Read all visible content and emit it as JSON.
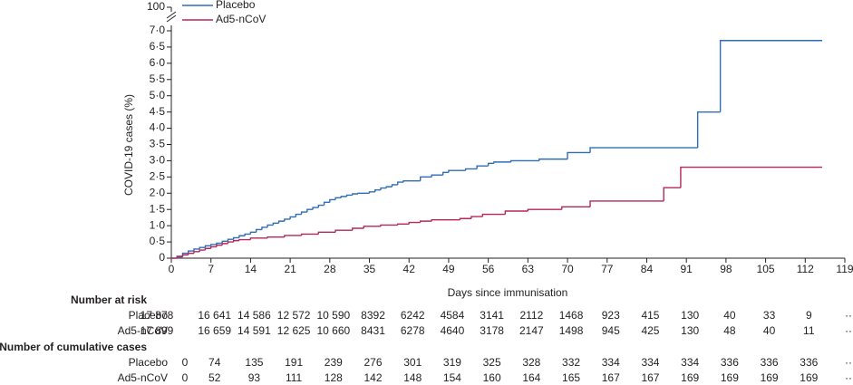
{
  "chart_data": {
    "type": "step",
    "x_label": "Days since immunisation",
    "y_label": "COVID-19 cases (%)",
    "xlim": [
      0,
      119
    ],
    "xticks": [
      0,
      7,
      14,
      21,
      28,
      35,
      42,
      49,
      56,
      63,
      70,
      77,
      84,
      91,
      98,
      105,
      112,
      119
    ],
    "ylim": [
      0,
      7
    ],
    "yticks": [
      0,
      {
        "value": 0.5,
        "label": "0·5"
      },
      {
        "value": 1,
        "label": "1·0"
      },
      {
        "value": 1.5,
        "label": "1·5"
      },
      {
        "value": 2,
        "label": "2·0"
      },
      {
        "value": 2.5,
        "label": "2·5"
      },
      {
        "value": 3,
        "label": "3·0"
      },
      {
        "value": 3.5,
        "label": "3·5"
      },
      {
        "value": 4,
        "label": "4·0"
      },
      {
        "value": 4.5,
        "label": "4·5"
      },
      {
        "value": 5,
        "label": "5·0"
      },
      {
        "value": 5.5,
        "label": "5·5"
      },
      {
        "value": 6,
        "label": "6·0"
      },
      {
        "value": 6.5,
        "label": "6·5"
      },
      {
        "value": 7,
        "label": "7·0"
      }
    ],
    "y_break_tick": 100,
    "series": [
      {
        "name": "Placebo",
        "color": "#2f6db5",
        "x": [
          0,
          1,
          2,
          3,
          4,
          5,
          6,
          7,
          8,
          9,
          10,
          11,
          12,
          13,
          14,
          15,
          16,
          17,
          18,
          19,
          20,
          21,
          22,
          23,
          24,
          25,
          26,
          27,
          28,
          29,
          30,
          31,
          32,
          33,
          35,
          36,
          37,
          38,
          39,
          40,
          41,
          44,
          46,
          48,
          49,
          52,
          54,
          56,
          57,
          60,
          65,
          70,
          74,
          93,
          97,
          115
        ],
        "values": [
          0,
          0.06,
          0.15,
          0.22,
          0.28,
          0.33,
          0.38,
          0.42,
          0.46,
          0.52,
          0.58,
          0.63,
          0.69,
          0.74,
          0.8,
          0.88,
          0.95,
          1.02,
          1.08,
          1.14,
          1.2,
          1.27,
          1.35,
          1.42,
          1.5,
          1.56,
          1.63,
          1.72,
          1.8,
          1.86,
          1.9,
          1.94,
          1.98,
          2.0,
          2.04,
          2.1,
          2.16,
          2.2,
          2.26,
          2.34,
          2.38,
          2.5,
          2.56,
          2.64,
          2.7,
          2.75,
          2.84,
          2.92,
          2.96,
          3.0,
          3.05,
          3.25,
          3.4,
          4.5,
          6.7,
          6.7
        ]
      },
      {
        "name": "Ad5-nCoV",
        "color": "#b5265a",
        "x": [
          0,
          1,
          2,
          3,
          4,
          5,
          6,
          7,
          8,
          9,
          10,
          11,
          12,
          14,
          17,
          20,
          23,
          26,
          29,
          32,
          34,
          37,
          40,
          42,
          44,
          46,
          51,
          53,
          55,
          59,
          63,
          69,
          74,
          87,
          90,
          115
        ],
        "values": [
          0,
          0.04,
          0.1,
          0.15,
          0.2,
          0.25,
          0.3,
          0.35,
          0.4,
          0.45,
          0.5,
          0.54,
          0.57,
          0.62,
          0.65,
          0.7,
          0.74,
          0.8,
          0.86,
          0.92,
          0.98,
          1.02,
          1.05,
          1.1,
          1.14,
          1.18,
          1.22,
          1.28,
          1.35,
          1.45,
          1.5,
          1.58,
          1.76,
          2.17,
          2.8,
          2.8
        ]
      }
    ]
  },
  "risk_table": {
    "title": "Number at risk",
    "rows": [
      {
        "label": "Placebo",
        "values": [
          "17 878",
          "16 641",
          "14 586",
          "12 572",
          "10 590",
          "8392",
          "6242",
          "4584",
          "3141",
          "2112",
          "1468",
          "923",
          "415",
          "130",
          "40",
          "33",
          "9",
          "··"
        ]
      },
      {
        "label": "Ad5-nCoV",
        "values": [
          "17 899",
          "16 659",
          "14 591",
          "12 625",
          "10 660",
          "8431",
          "6278",
          "4640",
          "3178",
          "2147",
          "1498",
          "945",
          "425",
          "130",
          "48",
          "40",
          "11",
          "··"
        ]
      }
    ]
  },
  "cumulative_table": {
    "title": "Number of cumulative cases",
    "rows": [
      {
        "label": "Placebo",
        "values": [
          "0",
          "74",
          "135",
          "191",
          "239",
          "276",
          "301",
          "319",
          "325",
          "328",
          "332",
          "334",
          "334",
          "334",
          "336",
          "336",
          "336",
          "··"
        ]
      },
      {
        "label": "Ad5-nCoV",
        "values": [
          "0",
          "52",
          "93",
          "111",
          "128",
          "142",
          "148",
          "154",
          "160",
          "164",
          "165",
          "167",
          "167",
          "169",
          "169",
          "169",
          "169",
          "··"
        ]
      }
    ]
  }
}
